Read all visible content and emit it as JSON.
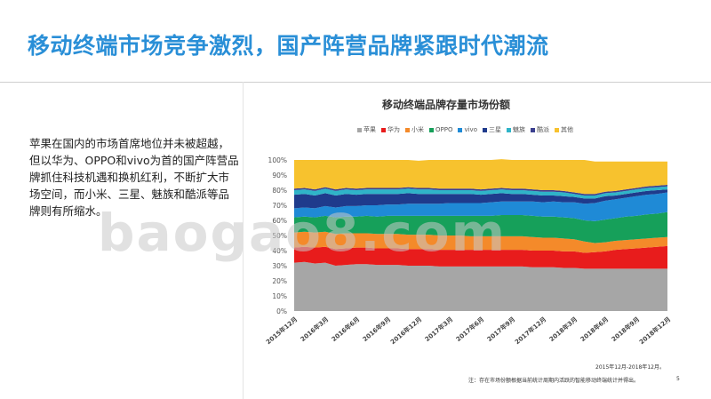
{
  "slide": {
    "title": "移动终端市场竞争激烈，国产阵营品牌紧跟时代潮流",
    "body": "苹果在国内的市场首席地位并未被超越，但以华为、OPPO和vivo为首的国产阵营品牌抓住科技机遇和换机红利，不断扩大市场空间，而小米、三星、魅族和酷派等品牌则有所缩水。",
    "watermark": "baogao8.com",
    "source_note": "2015年12月-2018年12月。",
    "footnote": "注：存在市场份额根据当前统计周期内活跃的智能移动终端统计并得出。",
    "page_number": "5"
  },
  "chart_data": {
    "type": "area",
    "stacked": true,
    "percent": true,
    "title": "移动终端品牌存量市场份额",
    "legend_position": "top",
    "x": [
      "2015年12月",
      "2016年1月",
      "2016年2月",
      "2016年3月",
      "2016年4月",
      "2016年5月",
      "2016年6月",
      "2016年7月",
      "2016年8月",
      "2016年9月",
      "2016年10月",
      "2016年11月",
      "2016年12月",
      "2017年1月",
      "2017年2月",
      "2017年3月",
      "2017年4月",
      "2017年5月",
      "2017年6月",
      "2017年7月",
      "2017年8月",
      "2017年9月",
      "2017年10月",
      "2017年11月",
      "2017年12月",
      "2018年1月",
      "2018年2月",
      "2018年3月",
      "2018年4月",
      "2018年5月",
      "2018年6月",
      "2018年7月",
      "2018年8月",
      "2018年9月",
      "2018年10月",
      "2018年11月",
      "2018年12月"
    ],
    "x_tick_labels": [
      "2015年12月",
      "2016年3月",
      "2016年6月",
      "2016年9月",
      "2016年12月",
      "2017年3月",
      "2017年6月",
      "2017年9月",
      "2017年12月",
      "2018年3月",
      "2018年6月",
      "2018年9月",
      "2018年12月"
    ],
    "y_tick_labels": [
      "0%",
      "10%",
      "20%",
      "30%",
      "40%",
      "50%",
      "60%",
      "70%",
      "80%",
      "90%",
      "100%"
    ],
    "ylim": [
      0,
      100
    ],
    "series": [
      {
        "name": "苹果",
        "color": "#a6a6a6",
        "values": [
          32,
          32.5,
          31.5,
          32,
          30,
          30.5,
          31,
          31,
          30.5,
          30.5,
          30.5,
          30,
          30,
          30,
          29.5,
          29.5,
          29.5,
          29.5,
          29.5,
          29.5,
          29.5,
          29.5,
          29.5,
          29,
          29,
          29,
          28.5,
          28.5,
          28,
          28,
          28,
          28,
          28,
          28,
          28,
          28,
          28
        ]
      },
      {
        "name": "华为",
        "color": "#e81c1c",
        "values": [
          10,
          10,
          10.5,
          10.5,
          11,
          11,
          11,
          11,
          11,
          11,
          11,
          11,
          11,
          11,
          11,
          11,
          11,
          11,
          11,
          11,
          11,
          11,
          11,
          11,
          11,
          11,
          11,
          11,
          10.5,
          11,
          11.5,
          12.5,
          13,
          13.5,
          14,
          14.5,
          15
        ]
      },
      {
        "name": "小米",
        "color": "#f48a2a",
        "values": [
          10,
          10,
          10,
          10,
          10,
          10,
          9.5,
          9.5,
          9.5,
          9.5,
          9.5,
          9.5,
          9.5,
          9.5,
          9.5,
          9.5,
          9.5,
          9,
          9,
          9,
          9,
          9,
          9,
          9,
          8.5,
          8.5,
          8.5,
          8,
          7.5,
          6,
          6,
          6,
          6,
          6,
          6,
          6,
          6
        ]
      },
      {
        "name": "OPPO",
        "color": "#16a05a",
        "values": [
          10,
          10,
          10,
          10.5,
          11,
          11,
          11,
          11.5,
          11.5,
          12,
          12,
          12.5,
          12.5,
          12.5,
          13,
          13,
          13,
          13.5,
          13.5,
          13.5,
          14,
          14,
          14,
          14,
          14,
          14,
          14,
          14,
          14,
          14.5,
          15,
          15,
          15.5,
          15.5,
          16,
          16,
          16.5
        ]
      },
      {
        "name": "vivo",
        "color": "#1f8ad6",
        "values": [
          6,
          6,
          6,
          6.5,
          6.5,
          7,
          7,
          7,
          7.5,
          7.5,
          7.5,
          8,
          8,
          8,
          8,
          8.5,
          8.5,
          8.5,
          8.5,
          9,
          9,
          9,
          9,
          9.5,
          9.5,
          10,
          10,
          10.5,
          11,
          12,
          12.5,
          12.5,
          12.5,
          13,
          13,
          13,
          13
        ]
      },
      {
        "name": "三星",
        "color": "#1f3b8c",
        "values": [
          9,
          9,
          8.5,
          8.5,
          8,
          8,
          7.5,
          7.5,
          7.5,
          7,
          7,
          7,
          6.5,
          6.5,
          6.5,
          6,
          6,
          6,
          5.5,
          5.5,
          5.5,
          5,
          5,
          4.5,
          4.5,
          4,
          4,
          3.5,
          3.5,
          3,
          3,
          2.5,
          2.5,
          2.5,
          2.5,
          2.5,
          2
        ]
      },
      {
        "name": "魅族",
        "color": "#2fb4c8",
        "values": [
          3,
          3,
          3,
          3,
          3,
          3,
          3,
          3,
          3,
          3,
          3,
          3,
          3,
          3,
          2.5,
          2.5,
          2.5,
          2.5,
          2.5,
          2.5,
          2.5,
          2.5,
          2.5,
          2.5,
          2.5,
          2.5,
          2.5,
          2,
          2,
          2,
          2,
          2,
          2,
          2,
          2,
          2,
          2
        ]
      },
      {
        "name": "酷派",
        "color": "#3b3f8f",
        "values": [
          1,
          1,
          1,
          1,
          1,
          1,
          1,
          1,
          1,
          1,
          1,
          1,
          1,
          1,
          1,
          1,
          1,
          1,
          1,
          1,
          1,
          1,
          1,
          1,
          1,
          1,
          1,
          1,
          1,
          1,
          1,
          1,
          1,
          1,
          1,
          1,
          1
        ]
      },
      {
        "name": "其他",
        "color": "#f7c22e",
        "values": [
          19,
          18.5,
          19.5,
          18,
          19.5,
          18.5,
          19,
          18.5,
          18.5,
          18.5,
          18.5,
          18,
          18,
          18.5,
          19,
          19,
          19,
          19,
          19.5,
          19,
          19,
          19,
          19,
          19.5,
          20,
          20,
          20.5,
          21.5,
          22.5,
          21.5,
          20,
          19.5,
          18.5,
          17.5,
          16.5,
          16,
          15.5
        ]
      }
    ]
  }
}
